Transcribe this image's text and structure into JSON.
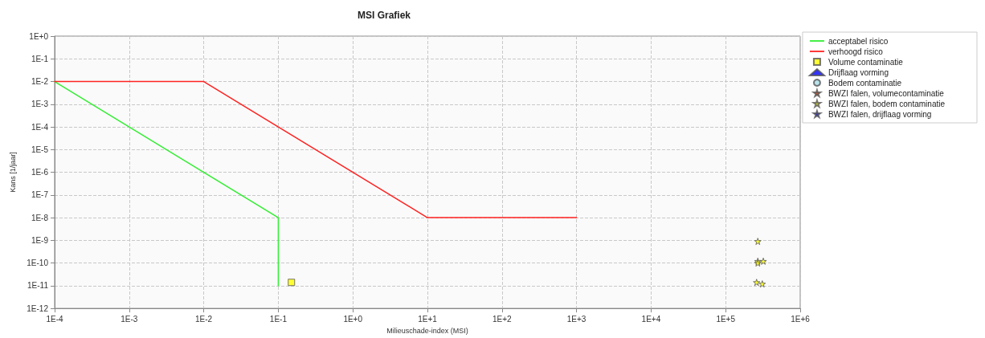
{
  "chart_data": {
    "type": "line",
    "title": "MSI Grafiek",
    "xlabel": "Milieuschade-index (MSI)",
    "ylabel": "Kans [1/jaar]",
    "log": "xy",
    "grid": true,
    "legend": "top right",
    "line_style": "solid",
    "xlim": [
      0.0001,
      1000000
    ],
    "xticks": [
      {
        "value": 0.0001,
        "label": "1E-4"
      },
      {
        "value": 0.001,
        "label": "1E-3"
      },
      {
        "value": 0.01,
        "label": "1E-2"
      },
      {
        "value": 0.1,
        "label": "1E-1"
      },
      {
        "value": 1,
        "label": "1E+0"
      },
      {
        "value": 10,
        "label": "1E+1"
      },
      {
        "value": 100,
        "label": "1E+2"
      },
      {
        "value": 1000,
        "label": "1E+3"
      },
      {
        "value": 10000,
        "label": "1E+4"
      },
      {
        "value": 100000,
        "label": "1E+5"
      },
      {
        "value": 1000000,
        "label": "1E+6"
      }
    ],
    "ylim": [
      1e-12,
      1
    ],
    "yticks": [
      {
        "value": 1e-12,
        "label": "1E-12"
      },
      {
        "value": 1e-11,
        "label": "1E-11"
      },
      {
        "value": 1e-10,
        "label": "1E-10"
      },
      {
        "value": 1e-09,
        "label": "1E-9"
      },
      {
        "value": 1e-08,
        "label": "1E-8"
      },
      {
        "value": 1e-07,
        "label": "1E-7"
      },
      {
        "value": 1e-06,
        "label": "1E-6"
      },
      {
        "value": 1e-05,
        "label": "1E-5"
      },
      {
        "value": 0.0001,
        "label": "1E-4"
      },
      {
        "value": 0.001,
        "label": "1E-3"
      },
      {
        "value": 0.01,
        "label": "1E-2"
      },
      {
        "value": 0.1,
        "label": "1E-1"
      },
      {
        "value": 1,
        "label": "1E+0"
      }
    ],
    "series": [
      {
        "name": "acceptabel risico",
        "marker": "none",
        "color": "#33ee33",
        "x": [
          0.0001,
          0.01,
          0.1,
          0.1
        ],
        "values": [
          0.01,
          1e-06,
          1e-08,
          1e-11
        ]
      },
      {
        "name": "verhoogd risico",
        "marker": "none",
        "color": "#ff2222",
        "x": [
          0.0001,
          0.01,
          10,
          1000
        ],
        "values": [
          0.01,
          0.01,
          1e-08,
          1e-08
        ]
      },
      {
        "name": "Volume contaminatie",
        "type": "scatter",
        "marker": "square",
        "color": "#ffff00",
        "x": [
          0.15
        ],
        "values": [
          1.4e-11
        ]
      },
      {
        "name": "Drijflaag vorming",
        "type": "scatter",
        "marker": "triangle",
        "color": "#0000ff"
      },
      {
        "name": "Bodem contaminatie",
        "type": "scatter",
        "marker": "circle",
        "color": "#a8dce8"
      },
      {
        "name": "BWZI falen, volumecontaminatie",
        "type": "scatter",
        "marker": "star",
        "color": "#cc3300"
      },
      {
        "name": "BWZI falen, bodem contaminatie",
        "type": "scatter",
        "marker": "star",
        "color": "#ffff00",
        "x": [
          270000,
          270000,
          270000,
          320000,
          260000,
          310000
        ],
        "values": [
          9e-10,
          1.2e-10,
          1e-10,
          1.2e-10,
          1.4e-11,
          1.2e-11
        ]
      },
      {
        "name": "BWZI falen, drijflaag vorming",
        "type": "scatter",
        "marker": "star",
        "color": "#0000cc"
      }
    ]
  }
}
